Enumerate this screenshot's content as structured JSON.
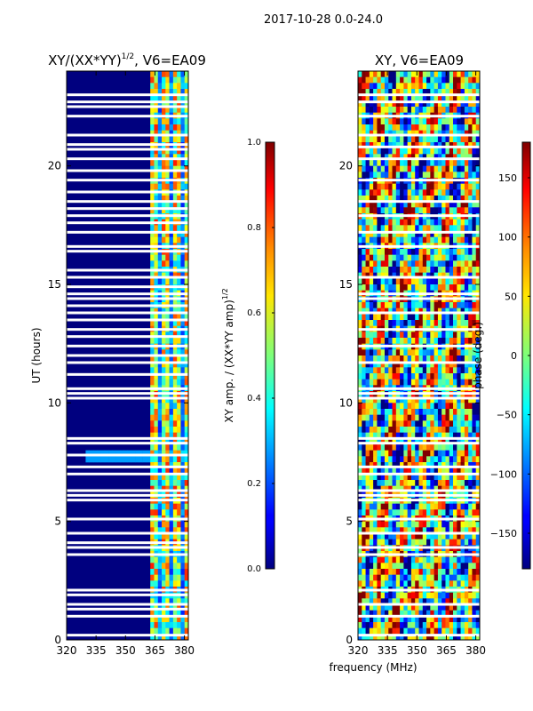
{
  "figure": {
    "suptitle": "2017-10-28 0.0-24.0",
    "xlabel": "frequency (MHz)"
  },
  "chart_data": [
    {
      "type": "heatmap",
      "title_main": "XY/(XX*YY)",
      "title_sup": "1/2",
      "title_rest": ", V6=EA09",
      "ylabel": "UT (hours)",
      "xlim": [
        320,
        382
      ],
      "ylim": [
        0,
        24
      ],
      "xticks": [
        320,
        335,
        350,
        365,
        380
      ],
      "yticks": [
        0,
        5,
        10,
        15,
        20
      ],
      "colorbar": {
        "label_main": "XY amp. / (XX*YY amp)",
        "label_sup": "1/2",
        "range": [
          0.0,
          1.0
        ],
        "ticks": [
          "0.0",
          "0.2",
          "0.4",
          "0.6",
          "0.8",
          "1.0"
        ],
        "tick_values": [
          0.0,
          0.2,
          0.4,
          0.6,
          0.8,
          1.0
        ]
      },
      "gaps_ut": [
        0.2,
        1.0,
        1.3,
        1.5,
        1.9,
        2.1,
        3.6,
        3.9,
        4.1,
        4.5,
        5.1,
        5.9,
        6.1,
        6.3,
        7.0,
        7.3,
        7.8,
        8.3,
        8.5,
        10.2,
        10.4,
        10.6,
        11.2,
        11.7,
        12.0,
        12.4,
        12.8,
        13.1,
        13.5,
        13.8,
        14.1,
        14.4,
        14.6,
        14.9,
        15.3,
        15.6,
        16.4,
        16.6,
        17.2,
        17.6,
        17.9,
        18.2,
        18.5,
        18.9,
        19.4,
        19.8,
        20.3,
        20.7,
        20.9,
        21.3,
        22.1,
        22.5,
        22.7,
        23.0
      ]
    },
    {
      "type": "heatmap",
      "title_main": "XY, V6=EA09",
      "ylabel": "",
      "xlim": [
        320,
        382
      ],
      "ylim": [
        0,
        24
      ],
      "xticks": [
        320,
        335,
        350,
        365,
        380
      ],
      "yticks": [
        0,
        5,
        10,
        15,
        20
      ],
      "colorbar": {
        "label_main": "phase (deg.)",
        "range": [
          -180,
          180
        ],
        "ticks": [
          "−150",
          "−100",
          "−50",
          "0",
          "50",
          "100",
          "150"
        ],
        "tick_values": [
          -150,
          -100,
          -50,
          0,
          50,
          100,
          150
        ]
      },
      "gaps_ut": [
        0.2,
        1.0,
        1.5,
        2.1,
        3.6,
        3.9,
        4.5,
        5.1,
        5.9,
        6.1,
        6.3,
        7.0,
        7.3,
        8.3,
        8.5,
        10.2,
        10.4,
        10.6,
        11.7,
        12.4,
        13.1,
        13.8,
        14.4,
        14.6,
        15.3,
        16.6,
        17.2,
        17.9,
        18.5,
        19.4,
        20.3,
        20.8,
        21.3,
        22.1,
        22.7,
        23.0
      ]
    }
  ]
}
